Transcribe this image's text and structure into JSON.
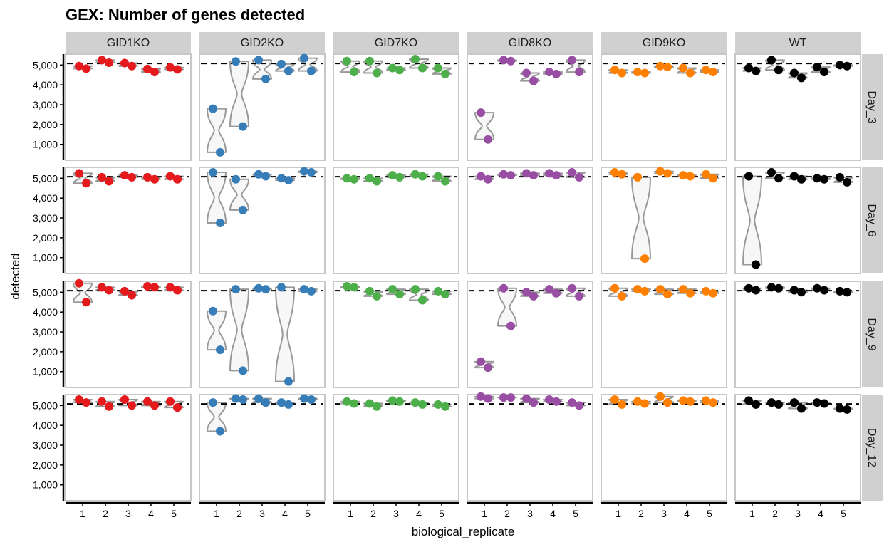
{
  "chart_data": {
    "type": "violin",
    "title": "GEX: Number of genes detected",
    "xlabel": "biological_replicate",
    "ylabel": "detected",
    "x_categories": [
      "1",
      "2",
      "3",
      "4",
      "5"
    ],
    "y_ticks": [
      1000,
      2000,
      3000,
      4000,
      5000
    ],
    "y_tick_labels": [
      "1,000",
      "2,000",
      "3,000",
      "4,000",
      "5,000"
    ],
    "ylim": [
      200,
      5550
    ],
    "reference_line": 5080,
    "column_facets": [
      "GID1KO",
      "GID2KO",
      "GID7KO",
      "GID8KO",
      "GID9KO",
      "WT"
    ],
    "row_facets": [
      "Day_3",
      "Day_6",
      "Day_9",
      "Day_12"
    ],
    "colors": {
      "GID1KO": "#e41a1c",
      "GID2KO": "#377eb8",
      "GID7KO": "#4daf4a",
      "GID8KO": "#984ea3",
      "GID9KO": "#ff7f00",
      "WT": "#000000",
      "violin_outline": "#999999",
      "violin_fill": "#f7f7f7",
      "strip_bg": "#d0d0d0",
      "panel_border": "#c8c8c8"
    },
    "panels": {
      "Day_3": {
        "GID1KO": [
          [
            4950,
            4820
          ],
          [
            5250,
            5120
          ],
          [
            5100,
            4950
          ],
          [
            4800,
            4650
          ],
          [
            4880,
            4780
          ]
        ],
        "GID2KO": [
          [
            2800,
            600
          ],
          [
            5180,
            1900
          ],
          [
            5250,
            4300
          ],
          [
            5050,
            4700
          ],
          [
            5350,
            4700
          ]
        ],
        "GID7KO": [
          [
            5200,
            4650
          ],
          [
            5200,
            4600
          ],
          [
            4850,
            4750
          ],
          [
            5300,
            4850
          ],
          [
            4850,
            4550
          ]
        ],
        "GID8KO": [
          [
            2600,
            1250
          ],
          [
            5250,
            5200
          ],
          [
            4600,
            4200
          ],
          [
            4650,
            4550
          ],
          [
            5250,
            4650
          ]
        ],
        "GID9KO": [
          [
            4750,
            4600
          ],
          [
            4650,
            4600
          ],
          [
            4950,
            4900
          ],
          [
            4850,
            4600
          ],
          [
            4750,
            4650
          ]
        ],
        "WT": [
          [
            4850,
            4700
          ],
          [
            5250,
            4750
          ],
          [
            4600,
            4350
          ],
          [
            4900,
            4650
          ],
          [
            5000,
            4950
          ]
        ]
      },
      "Day_6": {
        "GID1KO": [
          [
            5250,
            4750
          ],
          [
            5050,
            4850
          ],
          [
            5150,
            5050
          ],
          [
            5050,
            4950
          ],
          [
            5100,
            4950
          ]
        ],
        "GID2KO": [
          [
            5300,
            2750
          ],
          [
            4950,
            3400
          ],
          [
            5200,
            5100
          ],
          [
            5000,
            4900
          ],
          [
            5350,
            5300
          ]
        ],
        "GID7KO": [
          [
            5000,
            4950
          ],
          [
            5000,
            4850
          ],
          [
            5150,
            5050
          ],
          [
            5200,
            5100
          ],
          [
            5100,
            4850
          ]
        ],
        "GID8KO": [
          [
            5100,
            4950
          ],
          [
            5200,
            5150
          ],
          [
            5250,
            5150
          ],
          [
            5250,
            5150
          ],
          [
            5300,
            5050
          ]
        ],
        "GID9KO": [
          [
            5300,
            5200
          ],
          [
            5050,
            950
          ],
          [
            5350,
            5250
          ],
          [
            5150,
            5100
          ],
          [
            5200,
            5000
          ]
        ],
        "WT": [
          [
            5100,
            650
          ],
          [
            5300,
            5000
          ],
          [
            5100,
            4950
          ],
          [
            5000,
            4950
          ],
          [
            5050,
            4800
          ]
        ]
      },
      "Day_9": {
        "GID1KO": [
          [
            5450,
            4500
          ],
          [
            5250,
            5100
          ],
          [
            5050,
            4850
          ],
          [
            5300,
            5250
          ],
          [
            5250,
            5100
          ]
        ],
        "GID2KO": [
          [
            4050,
            2100
          ],
          [
            5150,
            1050
          ],
          [
            5200,
            5150
          ],
          [
            5250,
            500
          ],
          [
            5150,
            5050
          ]
        ],
        "GID7KO": [
          [
            5300,
            5250
          ],
          [
            5050,
            4800
          ],
          [
            5150,
            4900
          ],
          [
            5150,
            4600
          ],
          [
            5050,
            4900
          ]
        ],
        "GID8KO": [
          [
            1500,
            1200
          ],
          [
            5200,
            3300
          ],
          [
            5000,
            4800
          ],
          [
            5150,
            4950
          ],
          [
            5200,
            4800
          ]
        ],
        "GID9KO": [
          [
            5200,
            4800
          ],
          [
            5150,
            5050
          ],
          [
            5150,
            4900
          ],
          [
            5150,
            4950
          ],
          [
            5050,
            4950
          ]
        ],
        "WT": [
          [
            5200,
            5100
          ],
          [
            5250,
            5200
          ],
          [
            5100,
            5000
          ],
          [
            5200,
            5100
          ],
          [
            5050,
            5000
          ]
        ]
      },
      "Day_12": {
        "GID1KO": [
          [
            5300,
            5150
          ],
          [
            5200,
            4950
          ],
          [
            5300,
            5000
          ],
          [
            5200,
            5000
          ],
          [
            5200,
            4900
          ]
        ],
        "GID2KO": [
          [
            5150,
            3700
          ],
          [
            5350,
            5300
          ],
          [
            5350,
            5150
          ],
          [
            5150,
            5050
          ],
          [
            5350,
            5300
          ]
        ],
        "GID7KO": [
          [
            5200,
            5100
          ],
          [
            5100,
            4950
          ],
          [
            5250,
            5200
          ],
          [
            5150,
            5050
          ],
          [
            5050,
            4950
          ]
        ],
        "GID8KO": [
          [
            5450,
            5350
          ],
          [
            5400,
            5400
          ],
          [
            5350,
            5150
          ],
          [
            5300,
            5200
          ],
          [
            5150,
            5000
          ]
        ],
        "GID9KO": [
          [
            5300,
            5050
          ],
          [
            5200,
            5100
          ],
          [
            5450,
            5150
          ],
          [
            5250,
            5200
          ],
          [
            5250,
            5150
          ]
        ],
        "WT": [
          [
            5250,
            5050
          ],
          [
            5150,
            5050
          ],
          [
            5150,
            4850
          ],
          [
            5150,
            5100
          ],
          [
            4850,
            4800
          ]
        ]
      }
    }
  }
}
